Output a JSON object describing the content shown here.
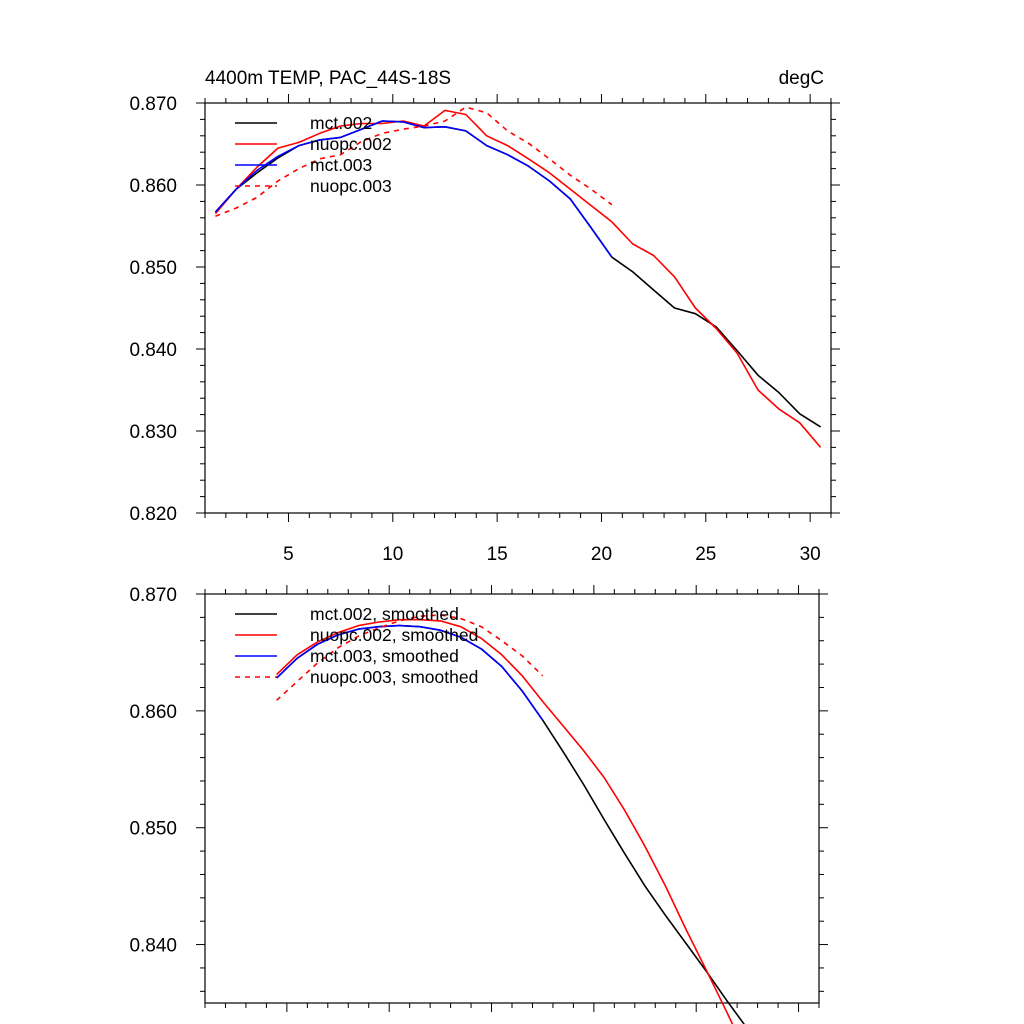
{
  "chart_data": [
    {
      "type": "line",
      "title": "4400m TEMP, PAC_44S-18S",
      "units": "degC",
      "xlabel": "",
      "ylabel": "",
      "xlim": [
        1,
        31
      ],
      "ylim": [
        0.82,
        0.87
      ],
      "x_ticks": [
        5,
        10,
        15,
        20,
        25,
        30
      ],
      "x_tick_labels": [
        "5",
        "10",
        "15",
        "20",
        "25",
        "30"
      ],
      "y_ticks": [
        0.82,
        0.83,
        0.84,
        0.85,
        0.86,
        0.87
      ],
      "y_tick_labels": [
        "0.820",
        "0.830",
        "0.840",
        "0.850",
        "0.860",
        "0.870"
      ],
      "legend_position": "top-left",
      "series": [
        {
          "name": "mct.002",
          "color": "#000000",
          "dash": "solid",
          "x": [
            1.5,
            2.5,
            3.5,
            4.5,
            5.5,
            6.5,
            7.5,
            8.5,
            9.5,
            10.5,
            11.5,
            12.5,
            13.5,
            14.5,
            15.5,
            16.5,
            17.5,
            18.5,
            19.5,
            20.5,
            21.5,
            22.5,
            23.5,
            24.5,
            25.5,
            26.5,
            27.5,
            28.5,
            29.5,
            30.5
          ],
          "y": [
            0.8567,
            0.8595,
            0.8615,
            0.8633,
            0.8648,
            0.8655,
            0.8658,
            0.8668,
            0.8678,
            0.8677,
            0.867,
            0.8671,
            0.8666,
            0.8648,
            0.8637,
            0.8623,
            0.8605,
            0.8583,
            0.8548,
            0.8512,
            0.8494,
            0.8472,
            0.845,
            0.8443,
            0.8427,
            0.8398,
            0.8368,
            0.8347,
            0.8321,
            0.8305
          ]
        },
        {
          "name": "nuopc.002",
          "color": "#ff0000",
          "dash": "solid",
          "x": [
            1.5,
            2.5,
            3.5,
            4.5,
            5.5,
            6.5,
            7.5,
            8.5,
            9.5,
            10.5,
            11.5,
            12.5,
            13.5,
            14.5,
            15.5,
            16.5,
            17.5,
            18.5,
            19.5,
            20.5,
            21.5,
            22.5,
            23.5,
            24.5,
            25.5,
            26.5,
            27.5,
            28.5,
            29.5,
            30.5
          ],
          "y": [
            0.8565,
            0.8595,
            0.8622,
            0.8645,
            0.8652,
            0.8663,
            0.8672,
            0.8675,
            0.8675,
            0.8678,
            0.8672,
            0.8691,
            0.8686,
            0.866,
            0.8648,
            0.8632,
            0.8615,
            0.8595,
            0.8575,
            0.8555,
            0.8528,
            0.8514,
            0.8488,
            0.845,
            0.8425,
            0.8395,
            0.835,
            0.8327,
            0.831,
            0.828
          ]
        },
        {
          "name": "mct.003",
          "color": "#0000ff",
          "dash": "solid",
          "x": [
            1.5,
            2.5,
            3.5,
            4.5,
            5.5,
            6.5,
            7.5,
            8.5,
            9.5,
            10.5,
            11.5,
            12.5,
            13.5,
            14.5,
            15.5,
            16.5,
            17.5,
            18.5,
            19.5,
            20.5
          ],
          "y": [
            0.8567,
            0.8595,
            0.8618,
            0.8635,
            0.8648,
            0.8655,
            0.8658,
            0.8668,
            0.8678,
            0.8677,
            0.867,
            0.8671,
            0.8666,
            0.8648,
            0.8637,
            0.8623,
            0.8605,
            0.8583,
            0.8548,
            0.8512
          ]
        },
        {
          "name": "nuopc.003",
          "color": "#ff0000",
          "dash": "dashed",
          "x": [
            1.5,
            2.5,
            3.5,
            4.5,
            5.5,
            6.5,
            7.5,
            8.5,
            9.5,
            10.5,
            11.5,
            12.5,
            13.5,
            14.5,
            15.5,
            16.5,
            17.5,
            18.5,
            19.5,
            20.5
          ],
          "y": [
            0.8562,
            0.8572,
            0.8585,
            0.8605,
            0.862,
            0.8632,
            0.8637,
            0.8653,
            0.8663,
            0.8668,
            0.8672,
            0.8678,
            0.8695,
            0.8688,
            0.8666,
            0.8651,
            0.8632,
            0.8612,
            0.8595,
            0.8576
          ]
        }
      ]
    },
    {
      "type": "line",
      "title": "",
      "xlabel": "",
      "ylabel": "",
      "xlim": [
        1,
        31
      ],
      "ylim": [
        0.835,
        0.87
      ],
      "x_ticks": [
        5,
        10,
        15,
        20,
        25,
        30
      ],
      "x_tick_labels": [],
      "y_ticks": [
        0.84,
        0.85,
        0.86,
        0.87
      ],
      "y_tick_labels": [
        "0.840",
        "0.850",
        "0.860",
        "0.870"
      ],
      "legend_position": "top-left",
      "series": [
        {
          "name": "mct.002, smoothed",
          "color": "#000000",
          "dash": "solid",
          "x": [
            4.5,
            5.5,
            6.5,
            7.5,
            8.5,
            9.5,
            10.5,
            11.5,
            12.5,
            13.5,
            14.5,
            15.5,
            16.5,
            17.5,
            18.5,
            19.5,
            20.5,
            21.5,
            22.5,
            23.5,
            24.5,
            25.5,
            26.5,
            27.5
          ],
          "y": [
            0.8628,
            0.8645,
            0.8657,
            0.8665,
            0.867,
            0.8672,
            0.8673,
            0.8672,
            0.8669,
            0.8663,
            0.8653,
            0.8638,
            0.8617,
            0.8592,
            0.8565,
            0.8537,
            0.8507,
            0.8478,
            0.845,
            0.8425,
            0.8401,
            0.8377,
            0.8352,
            0.8328
          ]
        },
        {
          "name": "nuopc.002, smoothed",
          "color": "#ff0000",
          "dash": "solid",
          "x": [
            4.5,
            5.5,
            6.5,
            7.5,
            8.5,
            9.5,
            10.5,
            11.5,
            12.5,
            13.5,
            14.5,
            15.5,
            16.5,
            17.5,
            18.5,
            19.5,
            20.5,
            21.5,
            22.5,
            23.5,
            24.5,
            25.5,
            26.5,
            27.5
          ],
          "y": [
            0.8631,
            0.8648,
            0.8659,
            0.8667,
            0.8673,
            0.8676,
            0.8678,
            0.8678,
            0.8677,
            0.8672,
            0.8662,
            0.8648,
            0.863,
            0.8608,
            0.8587,
            0.8566,
            0.8543,
            0.8515,
            0.8484,
            0.845,
            0.8413,
            0.8378,
            0.8342,
            0.8305
          ]
        },
        {
          "name": "mct.003, smoothed",
          "color": "#0000ff",
          "dash": "solid",
          "x": [
            4.5,
            5.5,
            6.5,
            7.5,
            8.5,
            9.5,
            10.5,
            11.5,
            12.5,
            13.5,
            14.5,
            15.5,
            16.5,
            17.5
          ],
          "y": [
            0.8628,
            0.8645,
            0.8657,
            0.8665,
            0.867,
            0.8672,
            0.8673,
            0.8672,
            0.8669,
            0.8663,
            0.8653,
            0.8638,
            0.8617,
            0.8592
          ]
        },
        {
          "name": "nuopc.003, smoothed",
          "color": "#ff0000",
          "dash": "dashed",
          "x": [
            4.5,
            5.5,
            6.5,
            7.5,
            8.5,
            9.5,
            10.5,
            11.5,
            12.5,
            13.5,
            14.5,
            15.5,
            16.5,
            17.5
          ],
          "y": [
            0.8609,
            0.8625,
            0.8641,
            0.8654,
            0.8664,
            0.8671,
            0.8677,
            0.8681,
            0.8682,
            0.8679,
            0.8672,
            0.866,
            0.8647,
            0.863
          ]
        }
      ]
    }
  ]
}
